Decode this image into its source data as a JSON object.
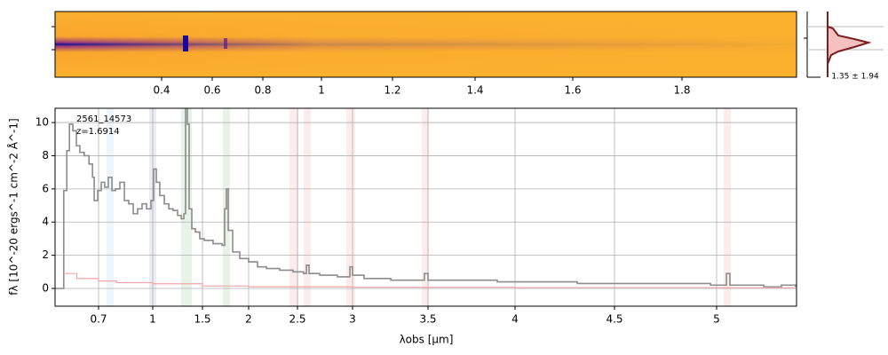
{
  "chart_data": [
    {
      "type": "image",
      "xticks": [
        0.4,
        0.6,
        0.8,
        1.0,
        1.2,
        1.4,
        1.6,
        1.8
      ],
      "annotation": "1.35 ± 1.94"
    },
    {
      "type": "line",
      "annotations": [
        "2561_14573",
        "z=1.6914"
      ],
      "xlabel": "λobs [μm]",
      "ylabel": "fλ [10^-20 ergs^-1 cm^-2 Å^-1]",
      "xlim": [
        0.6,
        5.39
      ],
      "ylim": [
        -1.07,
        10.86
      ],
      "xticks": [
        0.7,
        1.0,
        1.5,
        2.0,
        2.5,
        3.0,
        3.5,
        4.0,
        4.5,
        5.0
      ],
      "yticks": [
        0,
        2,
        4,
        6,
        8,
        10
      ],
      "grid": true,
      "series": [
        {
          "color": "#8c8c8c",
          "x": [
            0.6,
            0.616,
            0.62,
            0.627,
            0.633,
            0.641,
            0.649,
            0.657,
            0.667,
            0.678,
            0.686,
            0.69,
            0.698,
            0.715,
            0.734,
            0.754,
            0.774,
            0.794,
            0.818,
            0.843,
            0.867,
            0.892,
            0.916,
            0.941,
            0.966,
            0.99,
            1.009,
            1.036,
            1.071,
            1.116,
            1.161,
            1.205,
            1.25,
            1.286,
            1.313,
            1.33,
            1.348,
            1.366,
            1.393,
            1.429,
            1.473,
            1.519,
            1.615,
            1.712,
            1.74,
            1.76,
            1.779,
            1.827,
            1.904,
            2.0,
            2.091,
            2.182,
            2.318,
            2.455,
            2.556,
            2.581,
            2.605,
            2.702,
            2.863,
            2.96,
            2.976,
            3.0,
            3.076,
            3.253,
            3.459,
            3.476,
            3.5,
            3.694,
            3.898,
            4.089,
            4.313,
            4.535,
            4.752,
            4.97,
            5.035,
            5.048,
            5.065,
            5.23,
            5.316,
            5.385
          ],
          "values": [
            0,
            0,
            5.9,
            8.3,
            9.9,
            9.5,
            8.6,
            8.2,
            8.0,
            7.5,
            6.7,
            5.3,
            5.9,
            6.4,
            6.1,
            6.7,
            5.9,
            6.0,
            6.4,
            5.3,
            5.1,
            4.5,
            4.8,
            5.1,
            4.8,
            5.3,
            7.2,
            6.4,
            5.6,
            5.1,
            4.8,
            4.7,
            4.4,
            4.2,
            4.5,
            12,
            9.9,
            4.8,
            3.6,
            3.4,
            3.0,
            2.9,
            2.7,
            2.6,
            4.8,
            6.0,
            3.5,
            2.2,
            1.8,
            1.6,
            1.3,
            1.2,
            1.1,
            1.0,
            0.9,
            1.4,
            0.9,
            0.8,
            0.7,
            0.7,
            1.3,
            0.8,
            0.6,
            0.5,
            0.5,
            0.9,
            0.5,
            0.5,
            0.4,
            0.4,
            0.3,
            0.3,
            0.3,
            0.2,
            0.2,
            0.9,
            0.2,
            0.1,
            0.2,
            0.1
          ]
        },
        {
          "color": "#f4a6a6",
          "x": [
            0.62,
            0.65,
            0.7,
            0.8,
            1.0,
            1.5,
            2.0,
            3.0,
            4.0,
            5.0,
            5.385
          ],
          "values": [
            0.9,
            0.6,
            0.45,
            0.35,
            0.28,
            0.15,
            0.1,
            0.07,
            0.05,
            0.04,
            0.04
          ]
        }
      ]
    }
  ]
}
